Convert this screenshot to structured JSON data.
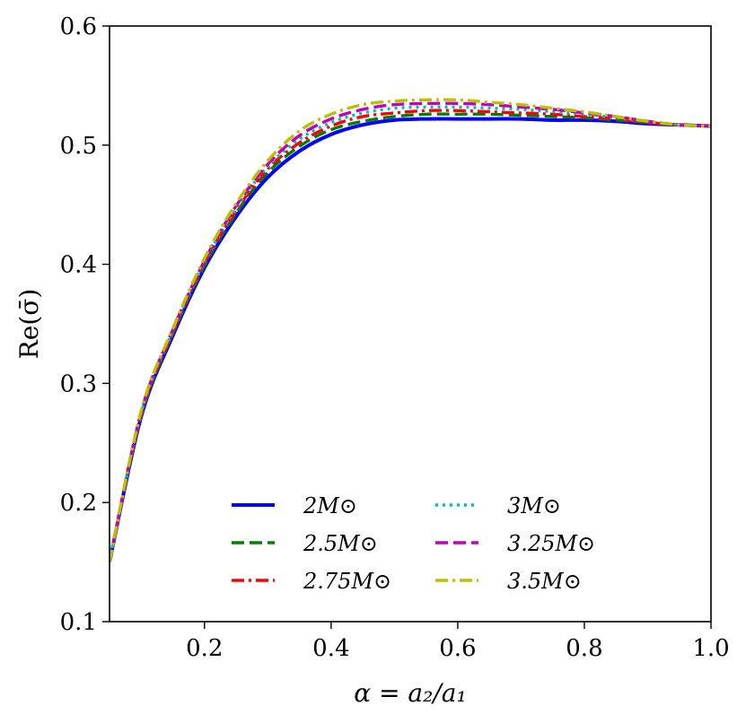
{
  "chart_data": {
    "type": "line",
    "xlabel": "α = a₂/a₁",
    "ylabel": "Re(σ̄)",
    "xlim": [
      0.05,
      1.0
    ],
    "ylim": [
      0.1,
      0.6
    ],
    "xticks": [
      0.2,
      0.4,
      0.6,
      0.8,
      1.0
    ],
    "xtick_labels": [
      "0.2",
      "0.4",
      "0.6",
      "0.8",
      "1.0"
    ],
    "yticks": [
      0.1,
      0.2,
      0.3,
      0.4,
      0.5,
      0.6
    ],
    "ytick_labels": [
      "0.1",
      "0.2",
      "0.3",
      "0.4",
      "0.5",
      "0.6"
    ],
    "grid": false,
    "legend_position": "lower-center",
    "x": [
      0.05,
      0.1,
      0.15,
      0.2,
      0.25,
      0.3,
      0.35,
      0.4,
      0.45,
      0.5,
      0.55,
      0.6,
      0.65,
      0.7,
      0.75,
      0.8,
      0.85,
      0.9,
      0.95,
      1.0
    ],
    "series": [
      {
        "name": "2M⊙",
        "color": "#0000ff",
        "dash": "solid",
        "values": [
          0.15,
          0.272,
          0.34,
          0.397,
          0.44,
          0.473,
          0.495,
          0.509,
          0.517,
          0.521,
          0.522,
          0.522,
          0.522,
          0.522,
          0.521,
          0.521,
          0.52,
          0.518,
          0.517,
          0.516
        ]
      },
      {
        "name": "2.5M⊙",
        "color": "#008000",
        "dash": "dashed",
        "values": [
          0.15,
          0.273,
          0.342,
          0.399,
          0.443,
          0.477,
          0.499,
          0.513,
          0.52,
          0.524,
          0.526,
          0.526,
          0.526,
          0.525,
          0.524,
          0.523,
          0.521,
          0.519,
          0.517,
          0.516
        ]
      },
      {
        "name": "2.75M⊙",
        "color": "#ff0000",
        "dash": "dashdot",
        "values": [
          0.15,
          0.274,
          0.343,
          0.401,
          0.445,
          0.48,
          0.502,
          0.516,
          0.524,
          0.527,
          0.529,
          0.529,
          0.528,
          0.527,
          0.526,
          0.524,
          0.522,
          0.519,
          0.517,
          0.516
        ]
      },
      {
        "name": "3M⊙",
        "color": "#00bfbf",
        "dash": "dotted",
        "values": [
          0.15,
          0.275,
          0.344,
          0.402,
          0.447,
          0.482,
          0.505,
          0.519,
          0.527,
          0.531,
          0.532,
          0.532,
          0.531,
          0.53,
          0.528,
          0.526,
          0.523,
          0.52,
          0.517,
          0.516
        ]
      },
      {
        "name": "3.25M⊙",
        "color": "#bf00bf",
        "dash": "dashed",
        "values": [
          0.15,
          0.276,
          0.345,
          0.403,
          0.449,
          0.484,
          0.508,
          0.522,
          0.53,
          0.534,
          0.535,
          0.535,
          0.534,
          0.532,
          0.53,
          0.527,
          0.524,
          0.52,
          0.517,
          0.516
        ]
      },
      {
        "name": "3.5M⊙",
        "color": "#bfbf00",
        "dash": "dashdot",
        "values": [
          0.15,
          0.277,
          0.346,
          0.405,
          0.451,
          0.487,
          0.512,
          0.526,
          0.534,
          0.537,
          0.538,
          0.538,
          0.536,
          0.534,
          0.531,
          0.528,
          0.524,
          0.52,
          0.517,
          0.516
        ]
      }
    ]
  }
}
